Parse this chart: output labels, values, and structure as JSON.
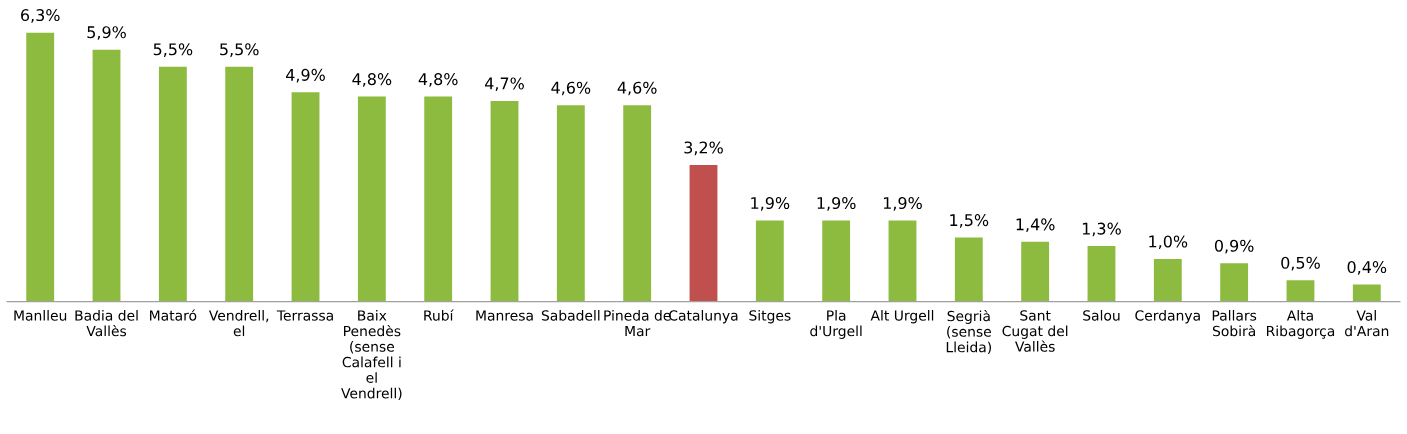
{
  "chart_data": {
    "type": "bar",
    "categories": [
      "Manlleu",
      "Badia del\nVallès",
      "Mataró",
      "Vendrell,\nel",
      "Terrassa",
      "Baix\nPenedès\n(sense\nCalafell i\nel\nVendrell)",
      "Rubí",
      "Manresa",
      "Sabadell",
      "Pineda de\nMar",
      "Catalunya",
      "Sitges",
      "Pla\nd'Urgell",
      "Alt Urgell",
      "Segrià\n(sense\nLleida)",
      "Sant\nCugat del\nVallès",
      "Salou",
      "Cerdanya",
      "Pallars\nSobirà",
      "Alta\nRibagorça",
      "Val\nd'Aran"
    ],
    "values": [
      6.3,
      5.9,
      5.5,
      5.5,
      4.9,
      4.8,
      4.8,
      4.7,
      4.6,
      4.6,
      3.2,
      1.9,
      1.9,
      1.9,
      1.5,
      1.4,
      1.3,
      1.0,
      0.9,
      0.5,
      0.4
    ],
    "value_labels": [
      "6,3%",
      "5,9%",
      "5,5%",
      "5,5%",
      "4,9%",
      "4,8%",
      "4,8%",
      "4,7%",
      "4,6%",
      "4,6%",
      "3,2%",
      "1,9%",
      "1,9%",
      "1,9%",
      "1,5%",
      "1,4%",
      "1,3%",
      "1,0%",
      "0,9%",
      "0,5%",
      "0,4%"
    ],
    "colors": [
      "#8dbb3f",
      "#8dbb3f",
      "#8dbb3f",
      "#8dbb3f",
      "#8dbb3f",
      "#8dbb3f",
      "#8dbb3f",
      "#8dbb3f",
      "#8dbb3f",
      "#8dbb3f",
      "#c0504d",
      "#8dbb3f",
      "#8dbb3f",
      "#8dbb3f",
      "#8dbb3f",
      "#8dbb3f",
      "#8dbb3f",
      "#8dbb3f",
      "#8dbb3f",
      "#8dbb3f",
      "#8dbb3f"
    ],
    "grid": false,
    "legend": false
  }
}
